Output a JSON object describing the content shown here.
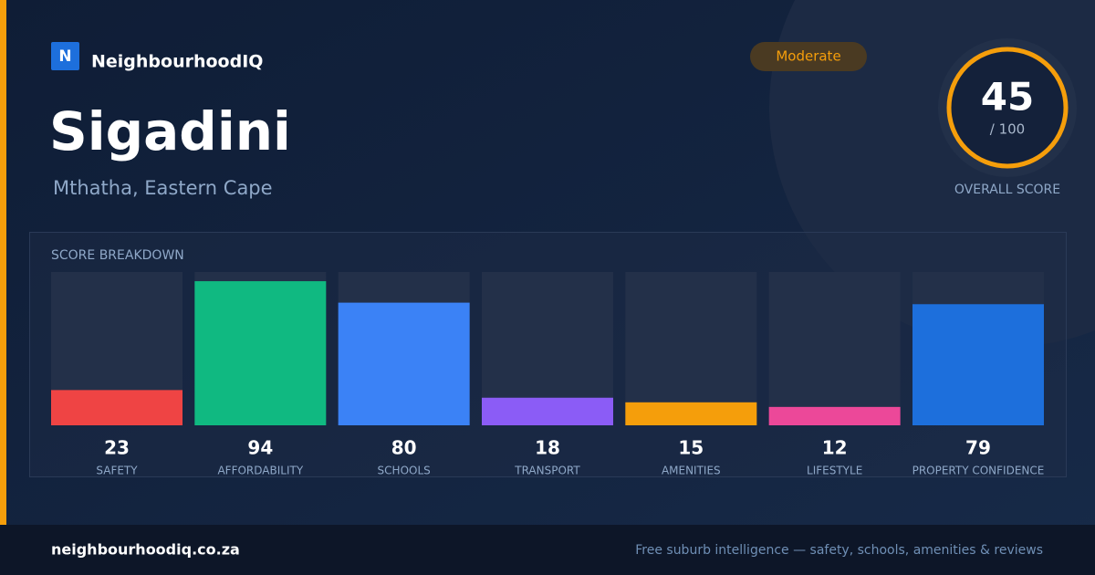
{
  "brand": {
    "logo": "N",
    "name": "NeighbourhoodIQ"
  },
  "header": {
    "title": "Sigadini",
    "location": "Mthatha, Eastern Cape",
    "badge": "Moderate"
  },
  "score": {
    "value": 45,
    "out_of": "/ 100",
    "caption": "OVERALL SCORE"
  },
  "chart_data": {
    "type": "bar",
    "title": "SCORE BREAKDOWN",
    "categories": [
      "SAFETY",
      "AFFORDABILITY",
      "SCHOOLS",
      "TRANSPORT",
      "AMENITIES",
      "LIFESTYLE",
      "PROPERTY CONFIDENCE"
    ],
    "values": [
      23,
      94,
      80,
      18,
      15,
      12,
      79
    ],
    "colors": [
      "#ef4444",
      "#10b981",
      "#3b82f6",
      "#8b5cf6",
      "#f59e0b",
      "#ec4899",
      "#1d6fdc"
    ],
    "ylim": [
      0,
      100
    ]
  },
  "footer": {
    "site": "neighbourhoodiq.co.za",
    "tagline": "Free suburb intelligence — safety, schools, amenities & reviews"
  }
}
